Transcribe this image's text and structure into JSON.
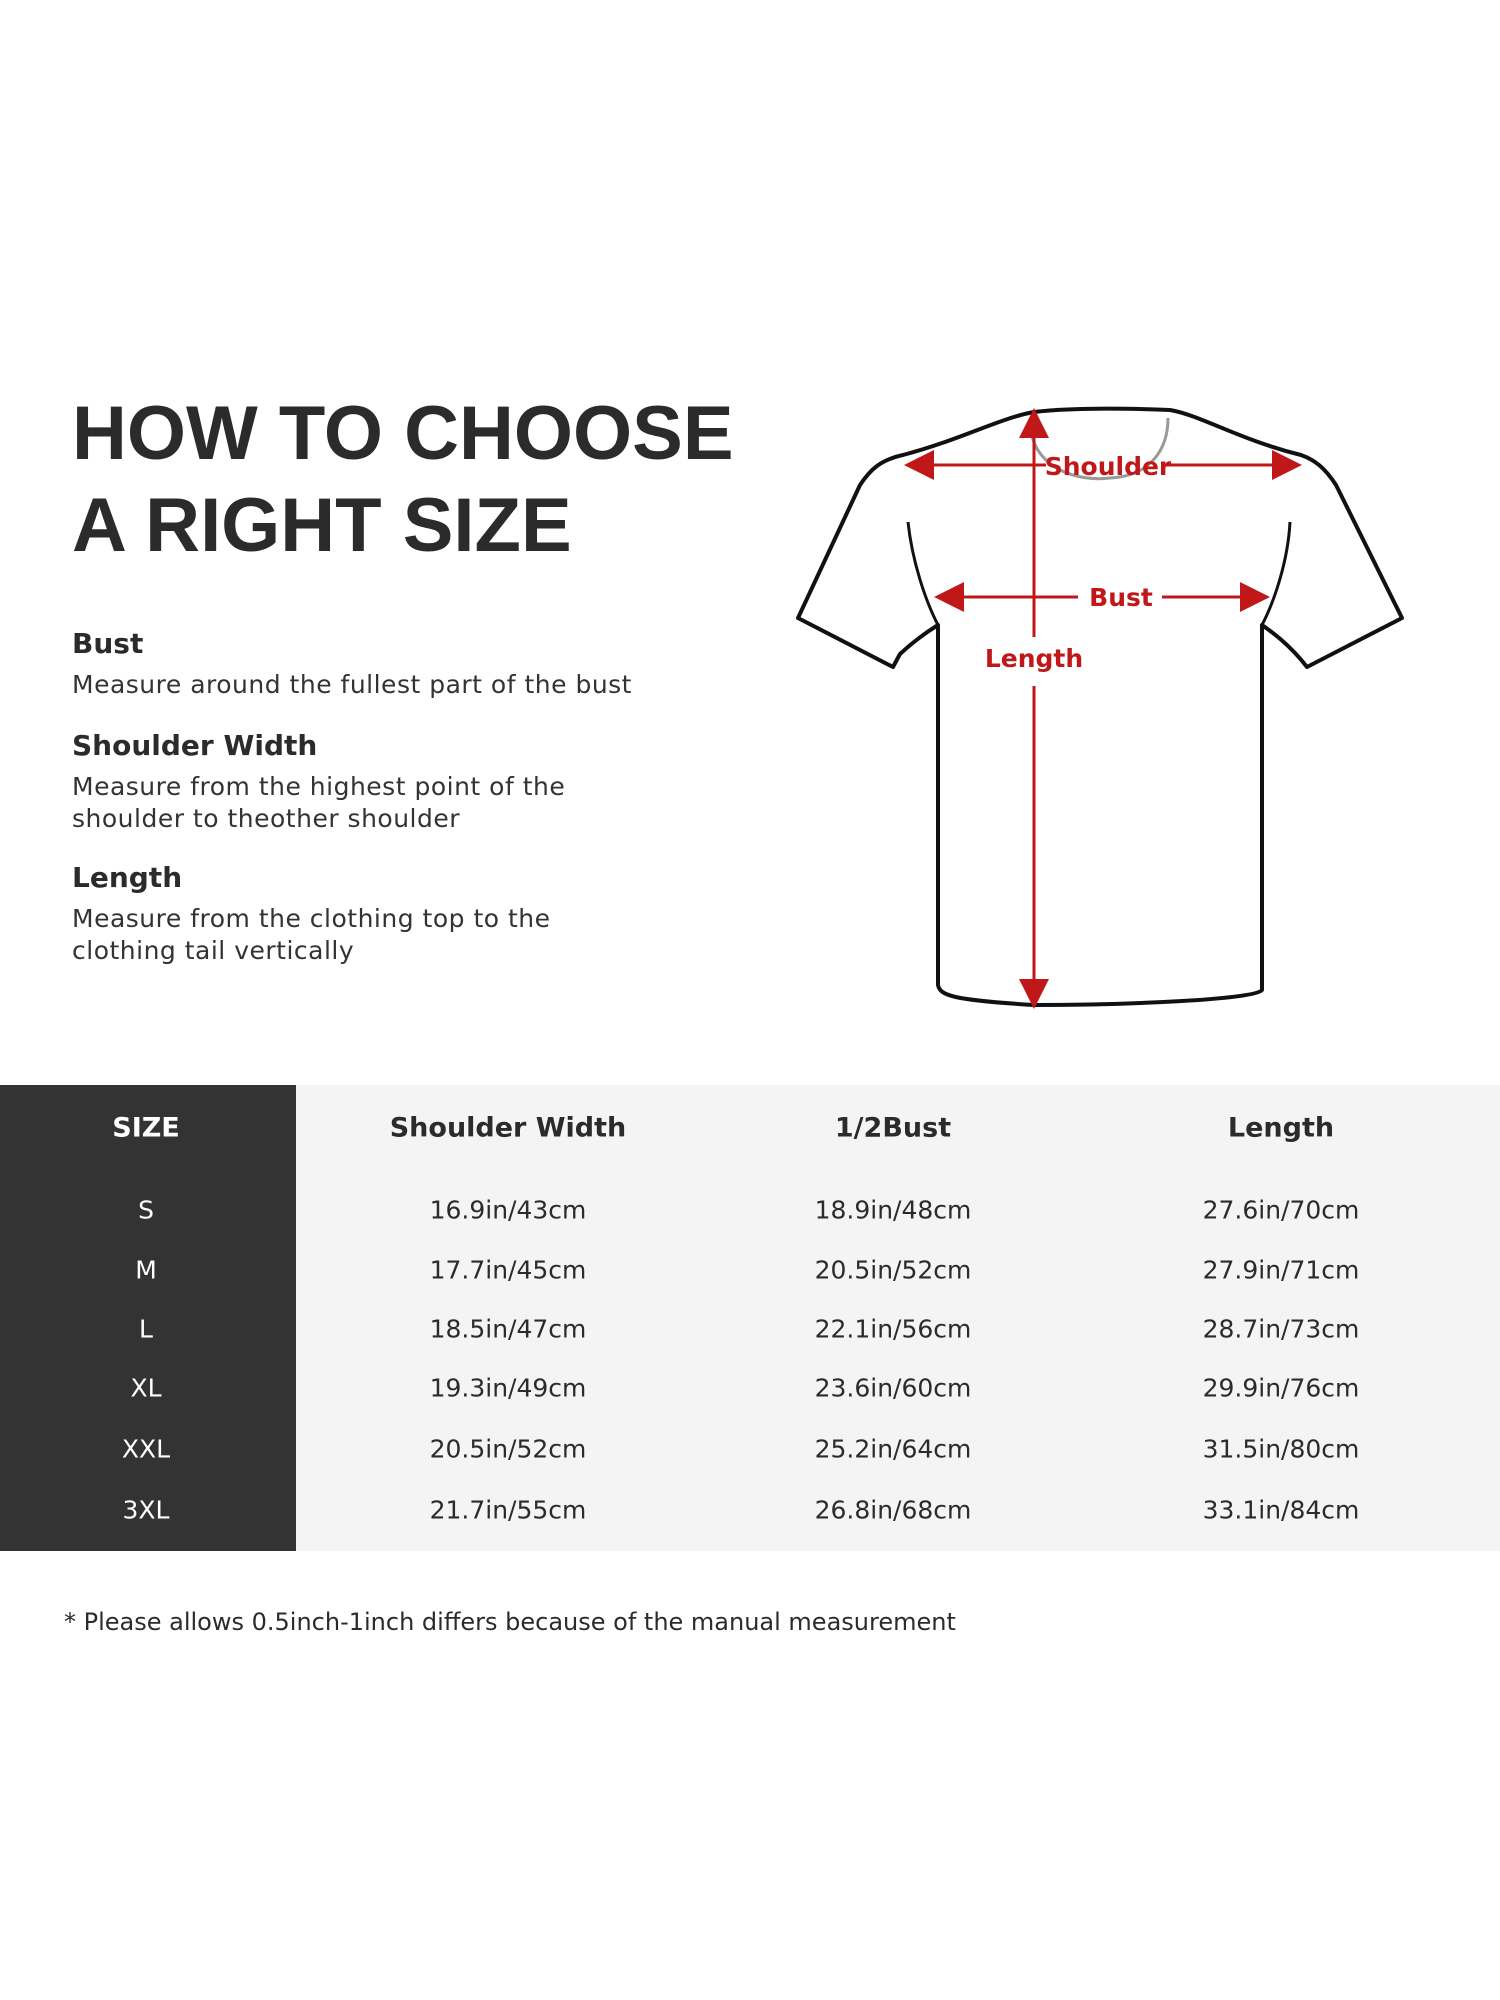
{
  "title": {
    "line1": "HOW TO CHOOSE",
    "line2": "A RIGHT SIZE"
  },
  "guide": [
    {
      "heading": "Bust",
      "description": [
        "Measure around the fullest part of the bust"
      ]
    },
    {
      "heading": "Shoulder Width",
      "description": [
        "Measure from the highest point of the",
        "shoulder to theother shoulder"
      ]
    },
    {
      "heading": "Length",
      "description": [
        "Measure from the clothing top to the",
        "clothing tail vertically"
      ]
    }
  ],
  "diagram": {
    "labels": {
      "shoulder": "Shoulder",
      "bust": "Bust",
      "length": "Length"
    },
    "arrow_color": "#c01818"
  },
  "table": {
    "headers": [
      "SIZE",
      "Shoulder Width",
      "1/2Bust",
      "Length"
    ],
    "rows": [
      [
        "S",
        "16.9in/43cm",
        "18.9in/48cm",
        "27.6in/70cm"
      ],
      [
        "M",
        "17.7in/45cm",
        "20.5in/52cm",
        "27.9in/71cm"
      ],
      [
        "L",
        "18.5in/47cm",
        "22.1in/56cm",
        "28.7in/73cm"
      ],
      [
        "XL",
        "19.3in/49cm",
        "23.6in/60cm",
        "29.9in/76cm"
      ],
      [
        "XXL",
        "20.5in/52cm",
        "25.2in/64cm",
        "31.5in/80cm"
      ],
      [
        "3XL",
        "21.7in/55cm",
        "26.8in/68cm",
        "33.1in/84cm"
      ]
    ],
    "size_column_color": "#333333",
    "body_color": "#f4f4f4"
  },
  "footnote": "* Please allows 0.5inch-1inch differs because of the  manual measurement"
}
